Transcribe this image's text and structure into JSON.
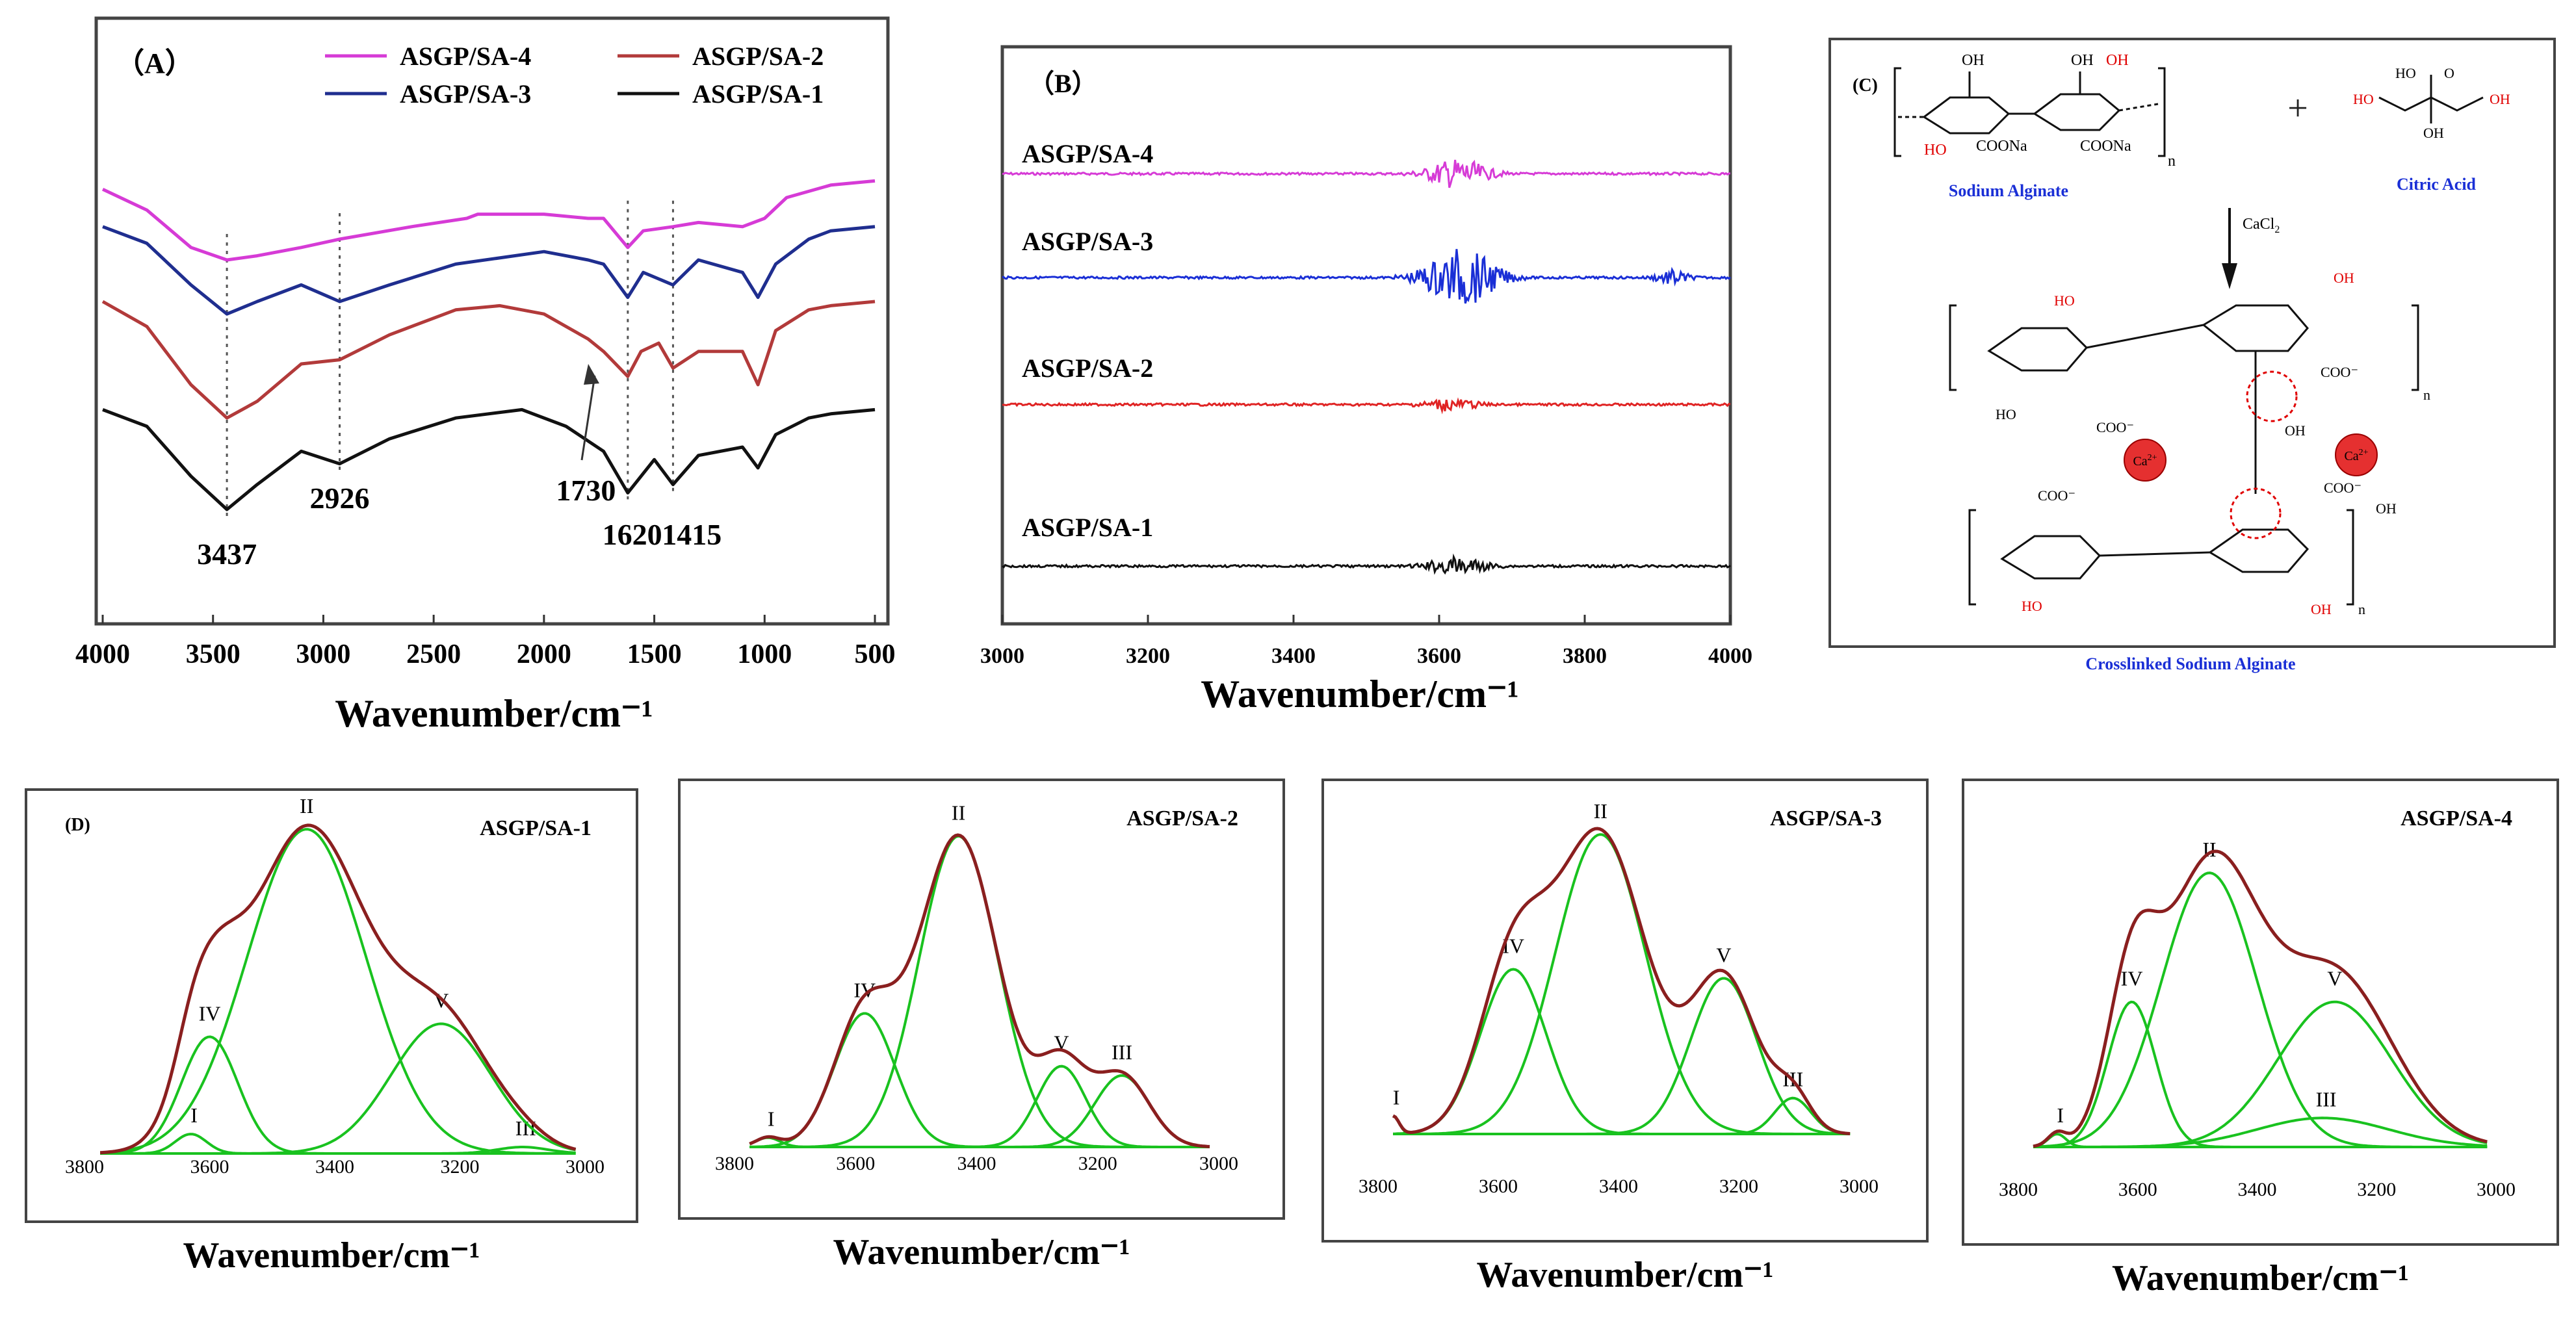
{
  "colors": {
    "magenta": "#d63bd6",
    "navy": "#1f2e8f",
    "red_brown": "#b23a3a",
    "black": "#111111",
    "blue_b3": "#1a2fd6",
    "red_b2": "#e02424",
    "fit_green": "#19c21f",
    "envelope": "#8a1f1f",
    "chem_red": "#e00000",
    "chem_blue": "#1a2fd6",
    "frame": "#444444"
  },
  "chart_data": [
    {
      "panel": "A",
      "type": "line",
      "label": "（A）",
      "xlabel": "Wavenumber/cm⁻¹",
      "xlim": [
        4000,
        500
      ],
      "x_ticks": [
        4000,
        3500,
        3000,
        2500,
        2000,
        1500,
        1000,
        500
      ],
      "legend": [
        "ASGP/SA-4",
        "ASGP/SA-2",
        "ASGP/SA-3",
        "ASGP/SA-1"
      ],
      "series": [
        {
          "name": "ASGP/SA-4",
          "color": "magenta",
          "points": [
            [
              4000,
              0.13
            ],
            [
              3800,
              0.18
            ],
            [
              3600,
              0.27
            ],
            [
              3437,
              0.3
            ],
            [
              3300,
              0.29
            ],
            [
              3100,
              0.27
            ],
            [
              2926,
              0.25
            ],
            [
              2600,
              0.22
            ],
            [
              2350,
              0.2
            ],
            [
              2300,
              0.19
            ],
            [
              2000,
              0.19
            ],
            [
              1800,
              0.2
            ],
            [
              1730,
              0.2
            ],
            [
              1620,
              0.27
            ],
            [
              1550,
              0.23
            ],
            [
              1415,
              0.22
            ],
            [
              1300,
              0.21
            ],
            [
              1100,
              0.22
            ],
            [
              1000,
              0.2
            ],
            [
              900,
              0.15
            ],
            [
              700,
              0.12
            ],
            [
              500,
              0.11
            ]
          ]
        },
        {
          "name": "ASGP/SA-3",
          "color": "navy",
          "points": [
            [
              4000,
              0.22
            ],
            [
              3800,
              0.26
            ],
            [
              3600,
              0.36
            ],
            [
              3437,
              0.43
            ],
            [
              3300,
              0.4
            ],
            [
              3100,
              0.36
            ],
            [
              2926,
              0.4
            ],
            [
              2700,
              0.36
            ],
            [
              2400,
              0.31
            ],
            [
              2000,
              0.28
            ],
            [
              1800,
              0.3
            ],
            [
              1730,
              0.31
            ],
            [
              1620,
              0.39
            ],
            [
              1550,
              0.33
            ],
            [
              1415,
              0.36
            ],
            [
              1300,
              0.3
            ],
            [
              1100,
              0.33
            ],
            [
              1030,
              0.39
            ],
            [
              950,
              0.31
            ],
            [
              800,
              0.25
            ],
            [
              700,
              0.23
            ],
            [
              500,
              0.22
            ]
          ]
        },
        {
          "name": "ASGP/SA-2",
          "color": "red_brown",
          "points": [
            [
              4000,
              0.4
            ],
            [
              3800,
              0.46
            ],
            [
              3600,
              0.6
            ],
            [
              3437,
              0.68
            ],
            [
              3300,
              0.64
            ],
            [
              3100,
              0.55
            ],
            [
              2926,
              0.54
            ],
            [
              2700,
              0.48
            ],
            [
              2400,
              0.42
            ],
            [
              2200,
              0.41
            ],
            [
              2000,
              0.43
            ],
            [
              1800,
              0.49
            ],
            [
              1730,
              0.52
            ],
            [
              1620,
              0.58
            ],
            [
              1560,
              0.52
            ],
            [
              1480,
              0.5
            ],
            [
              1415,
              0.56
            ],
            [
              1300,
              0.52
            ],
            [
              1100,
              0.52
            ],
            [
              1030,
              0.6
            ],
            [
              950,
              0.47
            ],
            [
              800,
              0.42
            ],
            [
              700,
              0.41
            ],
            [
              500,
              0.4
            ]
          ]
        },
        {
          "name": "ASGP/SA-1",
          "color": "black",
          "points": [
            [
              4000,
              0.66
            ],
            [
              3800,
              0.7
            ],
            [
              3600,
              0.82
            ],
            [
              3437,
              0.9
            ],
            [
              3300,
              0.84
            ],
            [
              3100,
              0.76
            ],
            [
              2926,
              0.79
            ],
            [
              2700,
              0.73
            ],
            [
              2400,
              0.68
            ],
            [
              2100,
              0.66
            ],
            [
              1900,
              0.7
            ],
            [
              1730,
              0.76
            ],
            [
              1620,
              0.86
            ],
            [
              1560,
              0.82
            ],
            [
              1500,
              0.78
            ],
            [
              1415,
              0.84
            ],
            [
              1300,
              0.77
            ],
            [
              1100,
              0.75
            ],
            [
              1030,
              0.8
            ],
            [
              950,
              0.72
            ],
            [
              800,
              0.68
            ],
            [
              700,
              0.67
            ],
            [
              500,
              0.66
            ]
          ]
        }
      ],
      "annotations": [
        "3437",
        "2926",
        "1730",
        "1620",
        "1415"
      ]
    },
    {
      "panel": "B",
      "type": "line",
      "label": "（B）",
      "xlabel": "Wavenumber/cm⁻¹",
      "xlim": [
        3000,
        4000
      ],
      "x_ticks": [
        3000,
        3200,
        3400,
        3600,
        3800,
        4000
      ],
      "series": [
        {
          "name": "ASGP/SA-4",
          "color": "magenta",
          "baseline": 0.22,
          "noise": [
            [
              3550,
              3700,
              0.025
            ]
          ]
        },
        {
          "name": "ASGP/SA-3",
          "color": "blue_b3",
          "baseline": 0.4,
          "noise": [
            [
              3540,
              3720,
              0.05
            ],
            [
              3880,
              3960,
              0.012
            ]
          ]
        },
        {
          "name": "ASGP/SA-2",
          "color": "red_b2",
          "baseline": 0.62,
          "noise": [
            [
              3550,
              3680,
              0.01
            ]
          ]
        },
        {
          "name": "ASGP/SA-1",
          "color": "black",
          "baseline": 0.9,
          "noise": [
            [
              3550,
              3700,
              0.014
            ]
          ]
        }
      ]
    },
    {
      "panel": "D",
      "type": "line",
      "label": "(D)",
      "xlabel": "Wavenumber/cm⁻¹",
      "subplots": [
        {
          "title": "ASGP/SA-1",
          "xlim": [
            3800,
            3000
          ],
          "x_ticks": [
            3800,
            3600,
            3400,
            3200,
            3000
          ],
          "peaks": [
            {
              "label": "I",
              "center": 3630,
              "height": 0.06,
              "width": 25
            },
            {
              "label": "II",
              "center": 3445,
              "height": 1.0,
              "width": 95
            },
            {
              "label": "III",
              "center": 3100,
              "height": 0.02,
              "width": 40
            },
            {
              "label": "IV",
              "center": 3600,
              "height": 0.36,
              "width": 45
            },
            {
              "label": "V",
              "center": 3230,
              "height": 0.4,
              "width": 80
            }
          ]
        },
        {
          "title": "ASGP/SA-2",
          "xlim": [
            3800,
            3000
          ],
          "x_ticks": [
            3800,
            3600,
            3400,
            3200,
            3000
          ],
          "peaks": [
            {
              "label": "I",
              "center": 3745,
              "height": 0.03,
              "width": 20
            },
            {
              "label": "II",
              "center": 3430,
              "height": 1.0,
              "width": 65
            },
            {
              "label": "III",
              "center": 3160,
              "height": 0.23,
              "width": 45
            },
            {
              "label": "IV",
              "center": 3585,
              "height": 0.43,
              "width": 50
            },
            {
              "label": "V",
              "center": 3260,
              "height": 0.26,
              "width": 40
            }
          ]
        },
        {
          "title": "ASGP/SA-3",
          "xlim": [
            3800,
            3000
          ],
          "x_ticks": [
            3800,
            3600,
            3400,
            3200,
            3000
          ],
          "peaks": [
            {
              "label": "I",
              "center": 3775,
              "height": 0.06,
              "width": 10
            },
            {
              "label": "II",
              "center": 3430,
              "height": 1.0,
              "width": 75
            },
            {
              "label": "III",
              "center": 3110,
              "height": 0.12,
              "width": 30
            },
            {
              "label": "IV",
              "center": 3575,
              "height": 0.55,
              "width": 55
            },
            {
              "label": "V",
              "center": 3225,
              "height": 0.52,
              "width": 55
            }
          ]
        },
        {
          "title": "ASGP/SA-4",
          "xlim": [
            3800,
            3000
          ],
          "x_ticks": [
            3800,
            3600,
            3400,
            3200,
            3000
          ],
          "peaks": [
            {
              "label": "I",
              "center": 3735,
              "height": 0.04,
              "width": 15
            },
            {
              "label": "II",
              "center": 3480,
              "height": 0.85,
              "width": 80
            },
            {
              "label": "III",
              "center": 3290,
              "height": 0.09,
              "width": 110
            },
            {
              "label": "IV",
              "center": 3610,
              "height": 0.45,
              "width": 40
            },
            {
              "label": "V",
              "center": 3270,
              "height": 0.45,
              "width": 95
            }
          ]
        }
      ]
    }
  ],
  "scheme": {
    "label": "(C)",
    "sodium_alginate": "Sodium Alginate",
    "citric_acid": "Citric Acid",
    "reagent": "CaCl",
    "reagent_sub": "2",
    "product": "Crosslinked Sodium Alginate",
    "plus": "+",
    "ion": "Ca",
    "ion_charge": "2+",
    "groups": {
      "oh": "OH",
      "ho": "HO",
      "coona": "COONa",
      "coo_minus": "COO⁻",
      "n": "n",
      "o": "O"
    }
  }
}
